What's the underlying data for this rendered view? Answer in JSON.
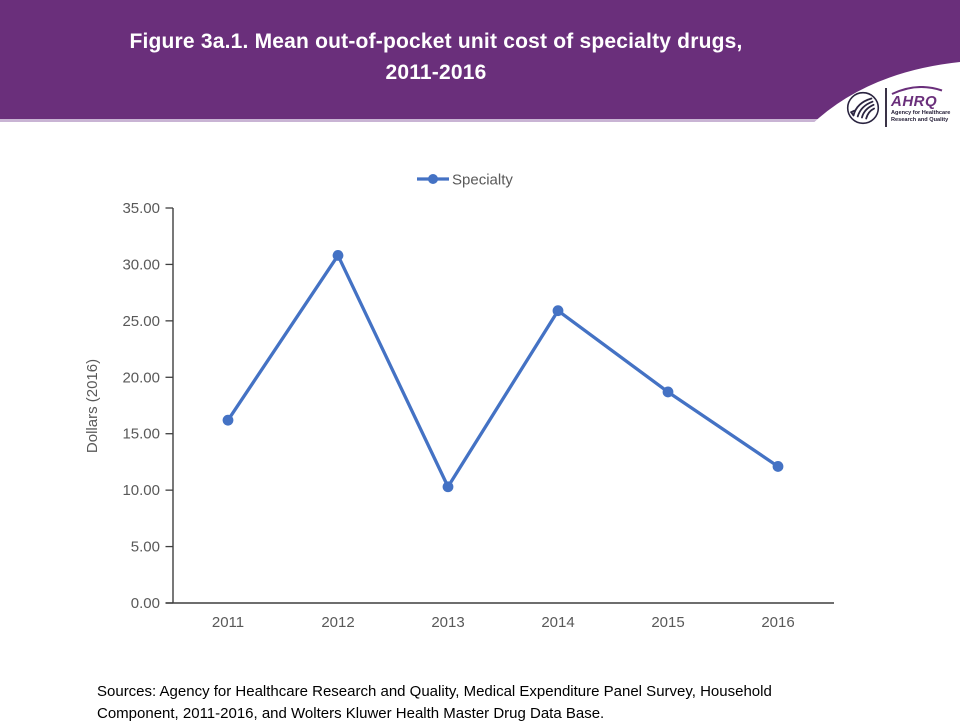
{
  "header": {
    "title_line1": "Figure 3a.1. Mean out-of-pocket unit cost of specialty drugs,",
    "title_line2": "2011-2016",
    "logo": {
      "org_acronym": "AHRQ",
      "org_tagline_line1": "Agency for Healthcare",
      "org_tagline_line2": "Research and Quality"
    }
  },
  "chart_data": {
    "type": "line",
    "categories": [
      "2011",
      "2012",
      "2013",
      "2014",
      "2015",
      "2016"
    ],
    "series": [
      {
        "name": "Specialty",
        "values": [
          16.2,
          30.8,
          10.3,
          25.9,
          18.7,
          12.1
        ],
        "color": "#4472c4",
        "marker": "circle"
      }
    ],
    "xlabel": "",
    "ylabel": "Dollars (2016)",
    "ylim": [
      0,
      35
    ],
    "ytick_step": 5,
    "ytick_labels": [
      "0.00",
      "5.00",
      "10.00",
      "15.00",
      "20.00",
      "25.00",
      "30.00",
      "35.00"
    ],
    "grid": false,
    "legend_position": "top"
  },
  "footer": {
    "sources": "Sources: Agency for Healthcare Research and Quality, Medical Expenditure Panel Survey, Household Component, 2011-2016, and Wolters Kluwer Health Master Drug Data Base."
  },
  "colors": {
    "banner": "#6a2f7b",
    "banner_edge": "#c9b4d4",
    "series_blue": "#4472c4",
    "axis_text": "#595959",
    "axis_line": "#3f3f3f",
    "source_text": "#000000"
  }
}
